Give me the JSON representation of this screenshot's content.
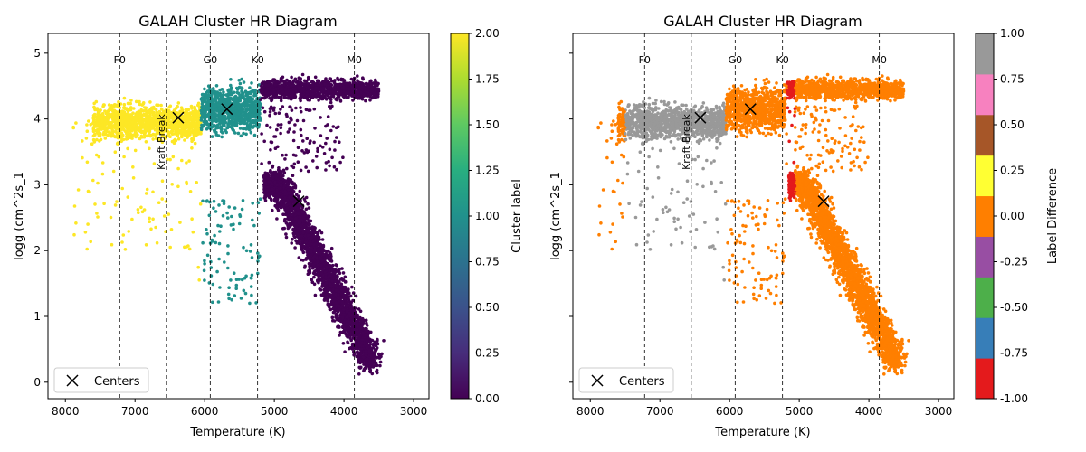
{
  "chart_data": [
    {
      "type": "scatter",
      "title": "GALAH Cluster HR Diagram",
      "xlabel": "Temperature (K)",
      "ylabel": "logg (cm^2s_1",
      "xlim": [
        8250,
        2780
      ],
      "ylim": [
        -0.25,
        5.3
      ],
      "x_ticks": [
        "8000",
        "7000",
        "6000",
        "5000",
        "4000",
        "3000"
      ],
      "y_ticks": [
        "0",
        "1",
        "2",
        "3",
        "4",
        "5"
      ],
      "grid": false,
      "legend": {
        "position": "lower-left",
        "entries": [
          {
            "label": "Centers",
            "marker": "x"
          }
        ]
      },
      "spectral_lines": [
        {
          "temp": 7220,
          "label": "F0"
        },
        {
          "temp": 5920,
          "label": "G0"
        },
        {
          "temp": 5240,
          "label": "K0"
        },
        {
          "temp": 3850,
          "label": "M0"
        }
      ],
      "kraft_break": {
        "temp": 6550,
        "label": "Kraft Break"
      },
      "centers": [
        {
          "temp": 6380,
          "logg": 4.02
        },
        {
          "temp": 5680,
          "logg": 4.15
        },
        {
          "temp": 4650,
          "logg": 2.75
        }
      ],
      "colorbar": {
        "label": "Cluster label",
        "colormap": "viridis",
        "range": [
          0,
          2
        ],
        "ticks": [
          "0.00",
          "0.25",
          "0.50",
          "0.75",
          "1.00",
          "1.25",
          "1.50",
          "1.75",
          "2.00"
        ]
      },
      "clusters": [
        {
          "label": 0,
          "color": "#440154",
          "region": "giants and cool dwarfs, T < 5200 K"
        },
        {
          "label": 1,
          "color": "#21918c",
          "region": "dwarfs, 5200 K < T < 6050 K"
        },
        {
          "label": 2,
          "color": "#fde725",
          "region": "hot dwarfs, T > 6050 K"
        }
      ]
    },
    {
      "type": "scatter",
      "title": "GALAH Cluster HR Diagram",
      "xlabel": "Temperature (K)",
      "ylabel": "logg (cm^2s_1",
      "xlim": [
        8250,
        2780
      ],
      "ylim": [
        -0.25,
        5.3
      ],
      "x_ticks": [
        "8000",
        "7000",
        "6000",
        "5000",
        "4000",
        "3000"
      ],
      "y_ticks": [
        "0",
        "1",
        "2",
        "3",
        "4",
        "5"
      ],
      "grid": false,
      "legend": {
        "position": "lower-left",
        "entries": [
          {
            "label": "Centers",
            "marker": "x"
          }
        ]
      },
      "spectral_lines": [
        {
          "temp": 7220,
          "label": "F0"
        },
        {
          "temp": 5920,
          "label": "G0"
        },
        {
          "temp": 5240,
          "label": "K0"
        },
        {
          "temp": 3850,
          "label": "M0"
        }
      ],
      "kraft_break": {
        "temp": 6550,
        "label": "Kraft Break"
      },
      "centers": [
        {
          "temp": 6420,
          "logg": 4.02
        },
        {
          "temp": 5700,
          "logg": 4.15
        },
        {
          "temp": 4650,
          "logg": 2.75
        }
      ],
      "colorbar": {
        "label": "Label Difference",
        "colormap": "Set1",
        "range": [
          -1,
          1
        ],
        "ticks": [
          "-1.00",
          "-0.75",
          "-0.50",
          "-0.25",
          "0.00",
          "0.25",
          "0.50",
          "0.75",
          "1.00"
        ],
        "bands": [
          "#e41a1c",
          "#377eb8",
          "#4daf4a",
          "#984ea3",
          "#ff7f00",
          "#ffff33",
          "#a65628",
          "#f781bf",
          "#999999"
        ]
      },
      "groups": [
        {
          "value": 1,
          "color": "#999999",
          "region": "hot dwarfs, 6050 K < T < 7500 K"
        },
        {
          "value": 0,
          "color": "#ff7f00",
          "region": "most stars"
        },
        {
          "value": -1,
          "color": "#e41a1c",
          "region": "narrow strip near 5100 K"
        }
      ]
    }
  ]
}
